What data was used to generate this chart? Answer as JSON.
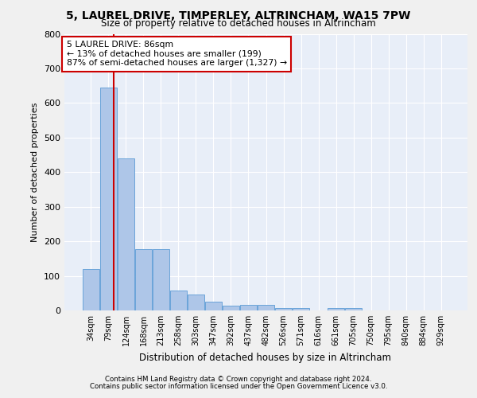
{
  "title": "5, LAUREL DRIVE, TIMPERLEY, ALTRINCHAM, WA15 7PW",
  "subtitle": "Size of property relative to detached houses in Altrincham",
  "xlabel": "Distribution of detached houses by size in Altrincham",
  "ylabel": "Number of detached properties",
  "bar_labels": [
    "34sqm",
    "79sqm",
    "124sqm",
    "168sqm",
    "213sqm",
    "258sqm",
    "303sqm",
    "347sqm",
    "392sqm",
    "437sqm",
    "482sqm",
    "526sqm",
    "571sqm",
    "616sqm",
    "661sqm",
    "705sqm",
    "750sqm",
    "795sqm",
    "840sqm",
    "884sqm",
    "929sqm"
  ],
  "bar_values": [
    120,
    645,
    440,
    178,
    178,
    58,
    45,
    25,
    13,
    15,
    15,
    8,
    8,
    0,
    8,
    8,
    0,
    0,
    0,
    0,
    0
  ],
  "bar_color": "#aec6e8",
  "bar_edge_color": "#5b9bd5",
  "vline_x": 1.28,
  "vline_color": "#cc0000",
  "annotation_text": "5 LAUREL DRIVE: 86sqm\n← 13% of detached houses are smaller (199)\n87% of semi-detached houses are larger (1,327) →",
  "annotation_box_color": "#ffffff",
  "annotation_box_edge_color": "#cc0000",
  "fig_bg_color": "#f0f0f0",
  "plot_bg_color": "#e8eef8",
  "grid_color": "#ffffff",
  "ylim": [
    0,
    800
  ],
  "yticks": [
    0,
    100,
    200,
    300,
    400,
    500,
    600,
    700,
    800
  ],
  "footer_line1": "Contains HM Land Registry data © Crown copyright and database right 2024.",
  "footer_line2": "Contains public sector information licensed under the Open Government Licence v3.0."
}
